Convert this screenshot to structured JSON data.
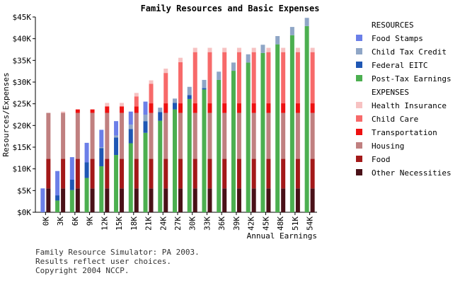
{
  "chart_data": {
    "type": "bar",
    "stacked": true,
    "title": "Family Resources and Basic Expenses",
    "xlabel": "Annual Earnings",
    "ylabel": "Resources/Expenses",
    "ylim": [
      0,
      45000
    ],
    "yticks": [
      "$0K",
      "$5K",
      "$10K",
      "$15K",
      "$20K",
      "$25K",
      "$30K",
      "$35K",
      "$40K",
      "$45K"
    ],
    "categories": [
      "0K",
      "3K",
      "6K",
      "9K",
      "12K",
      "15K",
      "18K",
      "21K",
      "24K",
      "27K",
      "30K",
      "33K",
      "36K",
      "39K",
      "42K",
      "45K",
      "48K",
      "51K",
      "54K"
    ],
    "legend_position": "right",
    "resources_heading": "RESOURCES",
    "expenses_heading": "EXPENSES",
    "resources_series": [
      {
        "name": "Post-Tax Earnings",
        "color": "#4caf50",
        "values": [
          0,
          2700,
          5100,
          7900,
          10600,
          13200,
          15900,
          18300,
          21100,
          23700,
          26100,
          28300,
          30500,
          32600,
          34500,
          36700,
          38700,
          40800,
          42900
        ]
      },
      {
        "name": "Federal EITC",
        "color": "#1f57b4",
        "values": [
          0,
          1200,
          2400,
          3600,
          4200,
          4000,
          3300,
          2700,
          2000,
          1500,
          900,
          300,
          0,
          0,
          0,
          0,
          0,
          0,
          0
        ]
      },
      {
        "name": "Child Tax Credit",
        "color": "#8fa6c6",
        "values": [
          0,
          0,
          0,
          0,
          200,
          500,
          1000,
          1500,
          1000,
          1000,
          1900,
          1900,
          1900,
          1900,
          1900,
          1900,
          1900,
          1900,
          1900
        ]
      },
      {
        "name": "Food Stamps",
        "color": "#6b7fe8",
        "values": [
          5500,
          5600,
          5200,
          4500,
          4000,
          3300,
          3000,
          3000,
          0,
          0,
          0,
          0,
          0,
          0,
          0,
          0,
          0,
          0,
          0
        ]
      }
    ],
    "expenses_series": [
      {
        "name": "Other Necessities",
        "color": "#4a1118",
        "values": [
          5500,
          5500,
          5500,
          5500,
          5500,
          5500,
          5500,
          5500,
          5500,
          5500,
          5500,
          5500,
          5500,
          5500,
          5500,
          5500,
          5500,
          5500,
          5500
        ]
      },
      {
        "name": "Food",
        "color": "#a31919",
        "values": [
          6800,
          6800,
          6800,
          6800,
          6800,
          6800,
          6800,
          6800,
          6800,
          6800,
          6800,
          6800,
          6800,
          6800,
          6800,
          6800,
          6800,
          6800,
          6800
        ]
      },
      {
        "name": "Housing",
        "color": "#c08080",
        "values": [
          10600,
          10600,
          10600,
          10600,
          10600,
          10600,
          10600,
          10600,
          10600,
          10600,
          10600,
          10600,
          10600,
          10600,
          10600,
          10600,
          10600,
          10600,
          10600
        ]
      },
      {
        "name": "Transportation",
        "color": "#ee1111",
        "values": [
          0,
          0,
          800,
          800,
          1500,
          1500,
          1500,
          2200,
          2200,
          2200,
          2200,
          2200,
          2200,
          2200,
          2200,
          2200,
          2200,
          2200,
          2200
        ]
      },
      {
        "name": "Child Care",
        "color": "#f76a6a",
        "values": [
          0,
          0,
          0,
          0,
          0,
          0,
          2300,
          4500,
          7000,
          9500,
          11800,
          11800,
          11800,
          11800,
          11800,
          11800,
          11800,
          11800,
          11800
        ]
      },
      {
        "name": "Health Insurance",
        "color": "#f7c2c2",
        "values": [
          0,
          300,
          0,
          0,
          800,
          800,
          800,
          800,
          1000,
          1000,
          1000,
          1000,
          1000,
          1000,
          1000,
          1000,
          1000,
          1000,
          1000
        ]
      }
    ],
    "legend_resources_order": [
      "Food Stamps",
      "Child Tax Credit",
      "Federal EITC",
      "Post-Tax Earnings"
    ],
    "legend_expenses_order": [
      "Health Insurance",
      "Child Care",
      "Transportation",
      "Housing",
      "Food",
      "Other Necessities"
    ]
  },
  "footer": {
    "line1": "Family Resource Simulator: PA 2003.",
    "line2": "Results reflect user choices.",
    "line3": "Copyright 2004 NCCP."
  }
}
